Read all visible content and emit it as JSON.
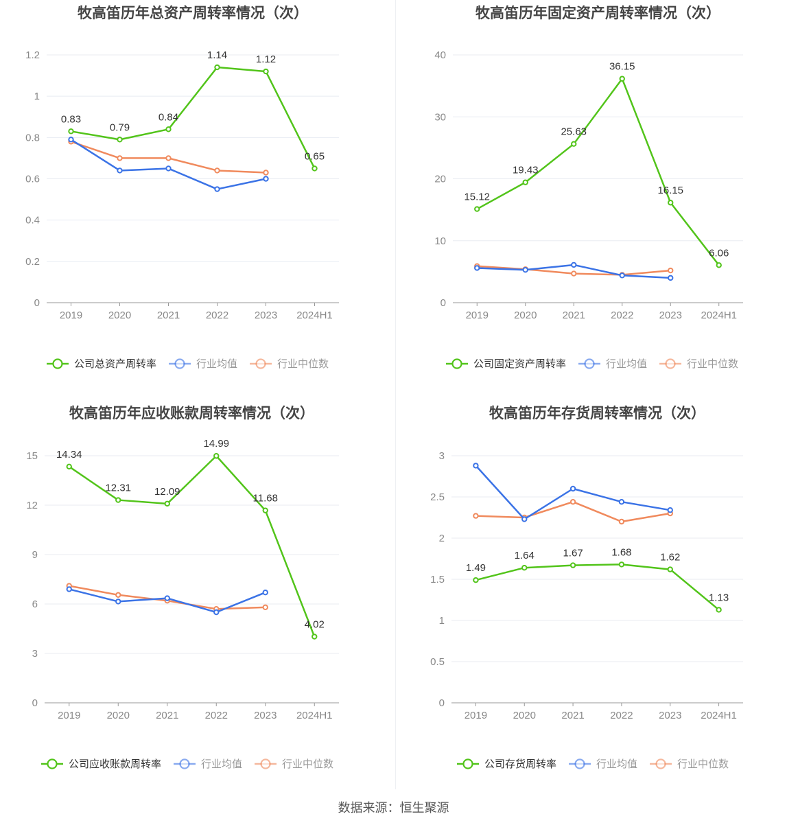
{
  "source_label": "数据来源：恒生聚源",
  "colors": {
    "company": "#52c41a",
    "avg": "#3b73e6",
    "median": "#f08a5d",
    "grid": "#e8ebf2",
    "axis": "#999999"
  },
  "chart_data": [
    {
      "type": "line",
      "title": "牧高笛历年总资产周转率情况（次）",
      "categories": [
        "2019",
        "2020",
        "2021",
        "2022",
        "2023",
        "2024H1"
      ],
      "yticks": [
        "0",
        "0.2",
        "0.4",
        "0.6",
        "0.8",
        "1",
        "1.2"
      ],
      "ylim": [
        0,
        1.2
      ],
      "series": [
        {
          "name": "公司总资产周转率",
          "values": [
            0.83,
            0.79,
            0.84,
            1.14,
            1.12,
            0.65
          ],
          "labels": [
            "0.83",
            "0.79",
            "0.84",
            "1.14",
            "1.12",
            "0.65"
          ]
        },
        {
          "name": "行业均值",
          "values": [
            0.79,
            0.64,
            0.65,
            0.55,
            0.6,
            null
          ]
        },
        {
          "name": "行业中位数",
          "values": [
            0.78,
            0.7,
            0.7,
            0.64,
            0.63,
            null
          ]
        }
      ]
    },
    {
      "type": "line",
      "title": "牧高笛历年固定资产周转率情况（次）",
      "categories": [
        "2019",
        "2020",
        "2021",
        "2022",
        "2023",
        "2024H1"
      ],
      "yticks": [
        "0",
        "10",
        "20",
        "30",
        "40"
      ],
      "ylim": [
        0,
        40
      ],
      "series": [
        {
          "name": "公司固定资产周转率",
          "values": [
            15.12,
            19.43,
            25.63,
            36.15,
            16.15,
            6.06
          ],
          "labels": [
            "15.12",
            "19.43",
            "25.63",
            "36.15",
            "16.15",
            "6.06"
          ]
        },
        {
          "name": "行业均值",
          "values": [
            5.6,
            5.3,
            6.1,
            4.4,
            4.0,
            null
          ]
        },
        {
          "name": "行业中位数",
          "values": [
            5.9,
            5.4,
            4.7,
            4.5,
            5.2,
            null
          ]
        }
      ]
    },
    {
      "type": "line",
      "title": "牧高笛历年应收账款周转率情况（次）",
      "categories": [
        "2019",
        "2020",
        "2021",
        "2022",
        "2023",
        "2024H1"
      ],
      "yticks": [
        "0",
        "3",
        "6",
        "9",
        "12",
        "15"
      ],
      "ylim": [
        0,
        15
      ],
      "series": [
        {
          "name": "公司应收账款周转率",
          "values": [
            14.34,
            12.31,
            12.09,
            14.99,
            11.68,
            4.02
          ],
          "labels": [
            "14.34",
            "12.31",
            "12.09",
            "14.99",
            "11.68",
            "4.02"
          ]
        },
        {
          "name": "行业均值",
          "values": [
            6.9,
            6.15,
            6.35,
            5.5,
            6.7,
            null
          ]
        },
        {
          "name": "行业中位数",
          "values": [
            7.1,
            6.55,
            6.2,
            5.7,
            5.8,
            null
          ]
        }
      ]
    },
    {
      "type": "line",
      "title": "牧高笛历年存货周转率情况（次）",
      "categories": [
        "2019",
        "2020",
        "2021",
        "2022",
        "2023",
        "2024H1"
      ],
      "yticks": [
        "0",
        "0.5",
        "1",
        "1.5",
        "2",
        "2.5",
        "3"
      ],
      "ylim": [
        0,
        3
      ],
      "series": [
        {
          "name": "公司存货周转率",
          "values": [
            1.49,
            1.64,
            1.67,
            1.68,
            1.62,
            1.13
          ],
          "labels": [
            "1.49",
            "1.64",
            "1.67",
            "1.68",
            "1.62",
            "1.13"
          ]
        },
        {
          "name": "行业均值",
          "values": [
            2.88,
            2.23,
            2.6,
            2.44,
            2.34,
            null
          ]
        },
        {
          "name": "行业中位数",
          "values": [
            2.27,
            2.25,
            2.44,
            2.2,
            2.3,
            null
          ]
        }
      ]
    }
  ]
}
